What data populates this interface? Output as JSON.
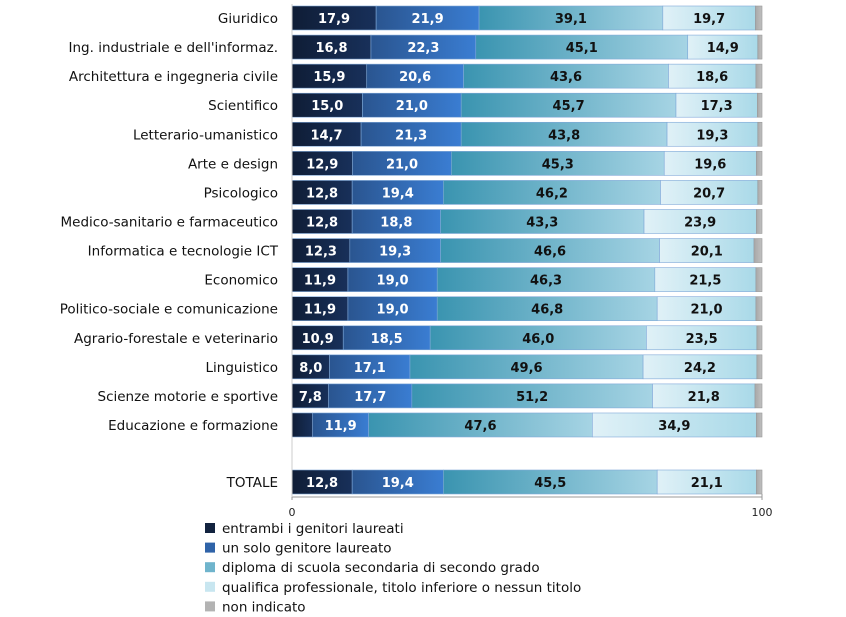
{
  "chart_data": {
    "type": "bar",
    "orientation": "horizontal",
    "stacked": true,
    "xlim": [
      0,
      100
    ],
    "x_ticks": [
      "0",
      "100"
    ],
    "legend_position": "bottom-left",
    "categories": [
      "Giuridico",
      "Ing. industriale e dell'informaz.",
      "Architettura e ingegneria civile",
      "Scientifico",
      "Letterario-umanistico",
      "Arte e design",
      "Psicologico",
      "Medico-sanitario e farmaceutico",
      "Informatica e tecnologie ICT",
      "Economico",
      "Politico-sociale e comunicazione",
      "Agrario-forestale e veterinario",
      "Linguistico",
      "Scienze motorie e sportive",
      "Educazione e formazione",
      "TOTALE"
    ],
    "series": [
      {
        "name": "entrambi i genitori laureati",
        "color": "#12233f",
        "values": [
          17.9,
          16.8,
          15.9,
          15.0,
          14.7,
          12.9,
          12.8,
          12.8,
          12.3,
          11.9,
          11.9,
          10.9,
          8.0,
          7.8,
          4.4,
          12.8
        ],
        "labels": [
          "17,9",
          "16,8",
          "15,9",
          "15,0",
          "14,7",
          "12,9",
          "12,8",
          "12,8",
          "12,3",
          "11,9",
          "11,9",
          "10,9",
          "8,0",
          "7,8",
          "",
          "12,8"
        ]
      },
      {
        "name": "un solo genitore laureato",
        "color": "#2f63a8",
        "values": [
          21.9,
          22.3,
          20.6,
          21.0,
          21.3,
          21.0,
          19.4,
          18.8,
          19.3,
          19.0,
          19.0,
          18.5,
          17.1,
          17.7,
          11.9,
          19.4
        ],
        "labels": [
          "21,9",
          "22,3",
          "20,6",
          "21,0",
          "21,3",
          "21,0",
          "19,4",
          "18,8",
          "19,3",
          "19,0",
          "19,0",
          "18,5",
          "17,1",
          "17,7",
          "11,9",
          "19,4"
        ]
      },
      {
        "name": "diploma di scuola secondaria di secondo grado",
        "color": "#6fb4cc",
        "values": [
          39.1,
          45.1,
          43.6,
          45.7,
          43.8,
          45.3,
          46.2,
          43.3,
          46.6,
          46.3,
          46.8,
          46.0,
          49.6,
          51.2,
          47.6,
          45.5
        ],
        "labels": [
          "39,1",
          "45,1",
          "43,6",
          "45,7",
          "43,8",
          "45,3",
          "46,2",
          "43,3",
          "46,6",
          "46,3",
          "46,8",
          "46,0",
          "49,6",
          "51,2",
          "47,6",
          "45,5"
        ]
      },
      {
        "name": "qualifica professionale, titolo inferiore o nessun titolo",
        "color": "#c8e6f0",
        "values": [
          19.7,
          14.9,
          18.6,
          17.3,
          19.3,
          19.6,
          20.7,
          23.9,
          20.1,
          21.5,
          21.0,
          23.5,
          24.2,
          21.8,
          34.9,
          21.1
        ],
        "labels": [
          "19,7",
          "14,9",
          "18,6",
          "17,3",
          "19,3",
          "19,6",
          "20,7",
          "23,9",
          "20,1",
          "21,5",
          "21,0",
          "23,5",
          "24,2",
          "21,8",
          "34,9",
          "21,1"
        ]
      },
      {
        "name": "non indicato",
        "color": "#b3b3b3",
        "values": [
          1.4,
          0.9,
          1.3,
          1.0,
          0.9,
          1.2,
          0.9,
          1.2,
          1.7,
          1.3,
          1.3,
          1.1,
          1.1,
          1.5,
          1.2,
          1.2
        ],
        "labels": [
          "",
          "",
          "",
          "",
          "",
          "",
          "",
          "",
          "",
          "",
          "",
          "",
          "",
          "",
          "",
          ""
        ]
      }
    ]
  }
}
